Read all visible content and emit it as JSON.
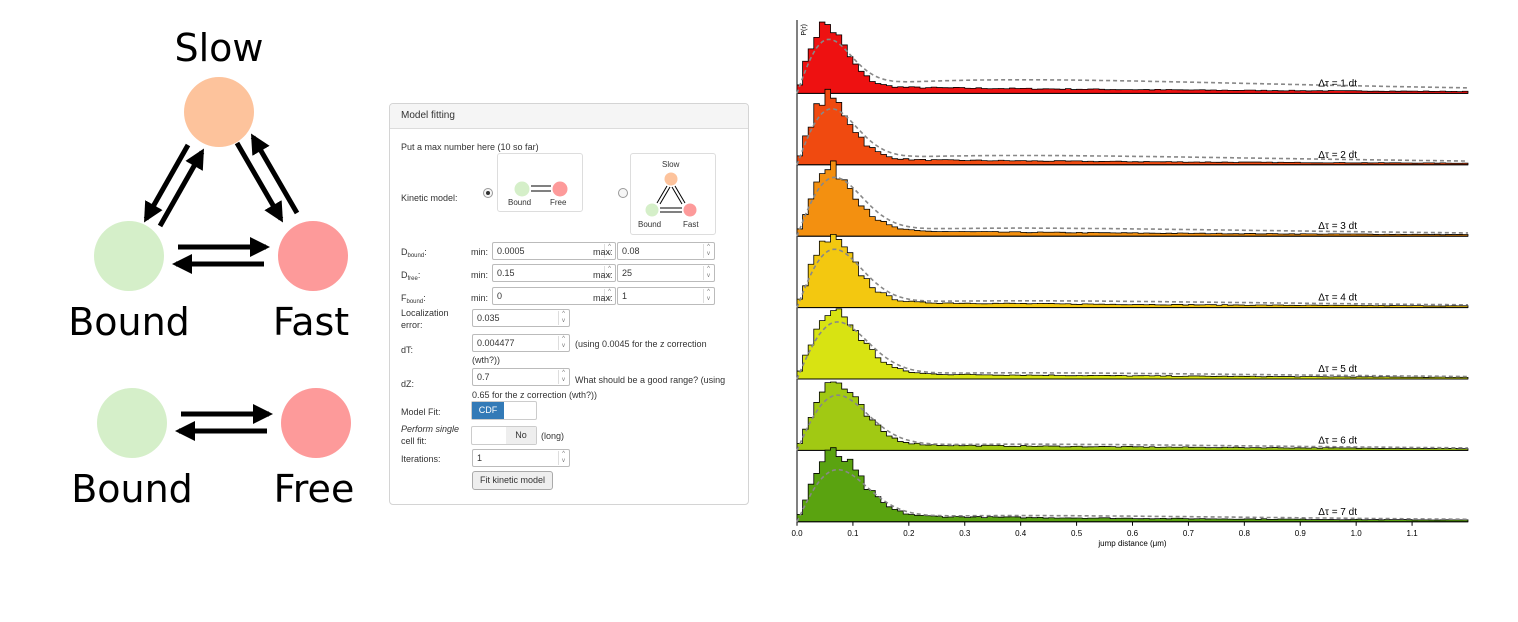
{
  "diagram": {
    "three_state": {
      "top": "Slow",
      "left": "Bound",
      "right": "Fast"
    },
    "two_state": {
      "left": "Bound",
      "right": "Free"
    },
    "colors": {
      "slow": "#fdc39c",
      "bound": "#d5efc9",
      "fast": "#fd9a9a",
      "free": "#fd9a9a"
    }
  },
  "panel": {
    "title": "Model fitting",
    "max_note": "Put a max number here (10 so far)",
    "kinetic_label": "Kinetic model:",
    "kinetic_options": [
      {
        "labels": [
          "Bound",
          "Free"
        ],
        "selected": true
      },
      {
        "labels": [
          "Slow",
          "Bound",
          "Fast"
        ],
        "selected": false
      }
    ],
    "params": [
      {
        "label": "D",
        "sub": "bound",
        "min_label": "min:",
        "min": "0.0005",
        "max_label": "max:",
        "max": "0.08"
      },
      {
        "label": "D",
        "sub": "free",
        "min_label": "min:",
        "min": "0.15",
        "max_label": "max:",
        "max": "25"
      },
      {
        "label": "F",
        "sub": "bound",
        "min_label": "min:",
        "min": "0",
        "max_label": "max:",
        "max": "1"
      }
    ],
    "loc_label_1": "Localization",
    "loc_label_2": "error:",
    "loc_value": "0.035",
    "dt_label": "dT:",
    "dt_value": "0.004477",
    "dt_note_1": "(using 0.0045 for the z correction",
    "dt_note_2": "(wth?))",
    "dz_label": "dZ:",
    "dz_value": "0.7",
    "dz_note_1": "What should be a good range? (using",
    "dz_note_2": "0.65 for the z correction (wth?))",
    "modelfit_label": "Model Fit:",
    "modelfit_value": "CDF",
    "single_label_1": "Perform single",
    "single_label_2": "cell fit:",
    "single_value": "No",
    "single_note": "(long)",
    "iter_label": "Iterations:",
    "iter_value": "1",
    "fit_button": "Fit kinetic model"
  },
  "chart_data": {
    "type": "bar",
    "ylabel": "P(r)",
    "xlabel": "jump distance (μm)",
    "xlim": [
      0,
      1.2
    ],
    "xticks": [
      "0.0",
      "0.1",
      "0.2",
      "0.3",
      "0.4",
      "0.5",
      "0.6",
      "0.7",
      "0.8",
      "0.9",
      "1.0",
      "1.1"
    ],
    "bin_width": 0.01,
    "fit_style": "grey dashed",
    "series": [
      {
        "name": "Δτ = 1 dt",
        "color": "#ee1111",
        "peak_x": 0.05,
        "peak_height": 1.0,
        "tail": 0.12,
        "fit_peak": 0.8,
        "fit_tail": 0.22
      },
      {
        "name": "Δτ = 2 dt",
        "color": "#f04a10",
        "peak_x": 0.055,
        "peak_height": 1.0,
        "tail": 0.1,
        "fit_peak": 0.85,
        "fit_tail": 0.15
      },
      {
        "name": "Δτ = 3 dt",
        "color": "#f39010",
        "peak_x": 0.06,
        "peak_height": 1.0,
        "tail": 0.1,
        "fit_peak": 0.9,
        "fit_tail": 0.13
      },
      {
        "name": "Δτ = 4 dt",
        "color": "#f3c810",
        "peak_x": 0.06,
        "peak_height": 1.0,
        "tail": 0.1,
        "fit_peak": 0.9,
        "fit_tail": 0.11
      },
      {
        "name": "Δτ = 5 dt",
        "color": "#d8e312",
        "peak_x": 0.065,
        "peak_height": 1.0,
        "tail": 0.1,
        "fit_peak": 0.88,
        "fit_tail": 0.1
      },
      {
        "name": "Δτ = 6 dt",
        "color": "#a1c913",
        "peak_x": 0.065,
        "peak_height": 1.0,
        "tail": 0.11,
        "fit_peak": 0.85,
        "fit_tail": 0.1
      },
      {
        "name": "Δτ = 7 dt",
        "color": "#5aa310",
        "peak_x": 0.065,
        "peak_height": 1.0,
        "tail": 0.11,
        "fit_peak": 0.8,
        "fit_tail": 0.1
      }
    ]
  }
}
